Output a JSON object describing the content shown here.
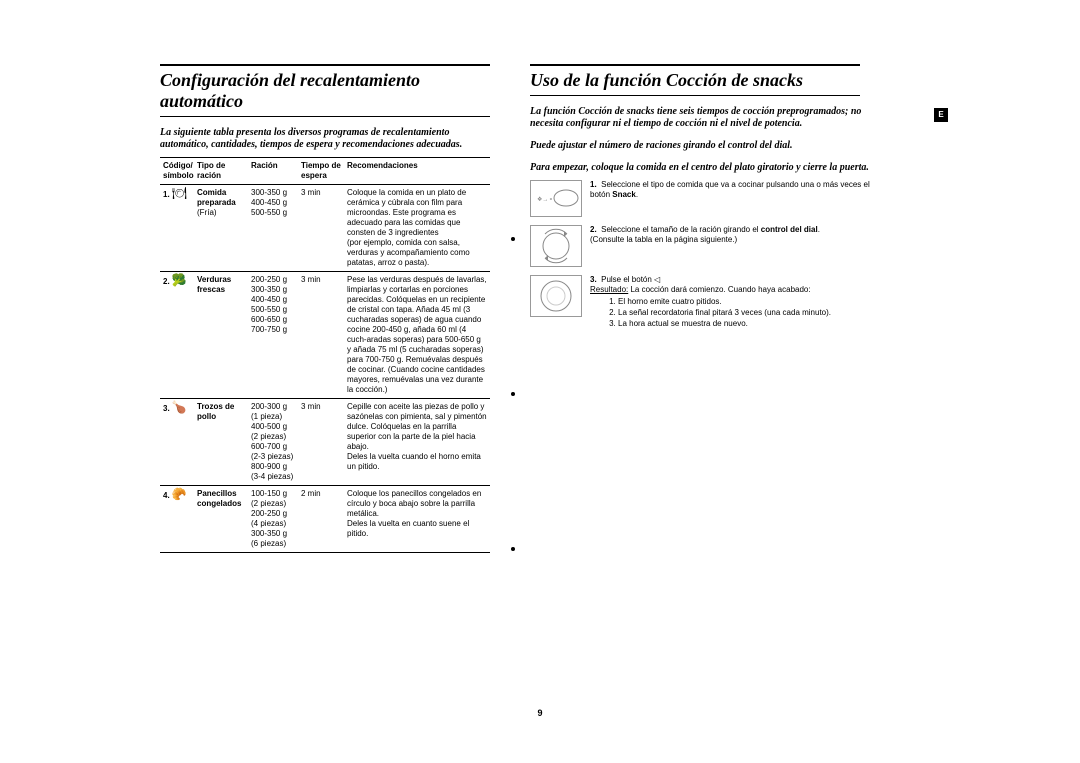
{
  "page_number": "9",
  "side_tab": "E",
  "left": {
    "heading": "Configuración del recalentamiento automático",
    "intro": "La siguiente tabla presenta los diversos programas de recalentamiento automático, cantidades, tiempos de espera y recomendaciones adecuadas.",
    "table": {
      "headers": {
        "code": "Código/\nsímbolo",
        "food": "Tipo de\nración",
        "serving": "Ración",
        "wait": "Tiempo de\nespera",
        "rec": "Recomendaciones"
      },
      "rows": [
        {
          "num": "1.",
          "symbol": "🍽",
          "food_bold": "Comida\npreparada",
          "food_sub": "(Fría)",
          "serving": "300-350 g\n400-450 g\n500-550 g",
          "wait": "3 min",
          "rec": "Coloque la comida en un plato de cerámica y cúbrala con film para microondas. Este programa es adecuado para las comidas que consten de 3 ingredientes\n(por ejemplo, comida con salsa, verduras y acompañamiento como patatas, arroz o pasta)."
        },
        {
          "num": "2.",
          "symbol": "🥦",
          "food_bold": "Verduras\nfrescas",
          "food_sub": "",
          "serving": "200-250 g\n300-350 g\n400-450 g\n500-550 g\n600-650 g\n700-750 g",
          "wait": "3 min",
          "rec": "Pese las verduras después de lavarlas, limpiarlas y cortarlas en porciones parecidas. Colóquelas en un recipiente de cristal con tapa. Añada 45 ml (3 cucharadas soperas) de agua cuando cocine 200-450 g, añada 60 ml (4 cuch-aradas soperas) para 500-650 g y añada 75 ml (5 cucharadas soperas) para 700-750 g. Remuévalas después de cocinar. (Cuando cocine cantidades mayores, remuévalas una vez durante la cocción.)"
        },
        {
          "num": "3.",
          "symbol": "🍗",
          "food_bold": "Trozos de\npollo",
          "food_sub": "",
          "serving": "200-300 g\n(1 pieza)\n400-500 g\n(2 piezas)\n600-700 g\n(2-3 piezas)\n800-900 g\n(3-4 piezas)",
          "wait": "3 min",
          "rec": "Cepille con aceite las piezas de pollo y sazónelas con pimienta, sal y pimentón dulce. Colóquelas en la parrilla superior con la parte de la piel hacia abajo.\nDeles la vuelta cuando el horno emita un pitido."
        },
        {
          "num": "4.",
          "symbol": "🥐",
          "food_bold": "Panecillos\ncongelados",
          "food_sub": "",
          "serving": "100-150 g\n(2 piezas)\n200-250 g\n(4 piezas)\n300-350 g\n(6 piezas)",
          "wait": "2 min",
          "rec": "Coloque los panecillos congelados en círculo y boca abajo sobre la parrilla metálica.\nDeles la vuelta en cuanto suene el pitido."
        }
      ]
    }
  },
  "right": {
    "heading": "Uso de la función Cocción de snacks",
    "intro1": "La función Cocción de snacks tiene seis tiempos de cocción preprogramados; no necesita configurar ni el tiempo de cocción ni el nivel de potencia.",
    "intro2": "Puede ajustar el número de raciones girando el control del dial.",
    "intro3": "Para empezar, coloque la comida en el centro del plato giratorio y cierre la puerta.",
    "steps": [
      {
        "num": "1.",
        "text_pre": "Seleccione el tipo de comida que va a cocinar pulsando una o más veces el botón ",
        "text_bold": "Snack",
        "text_post": "."
      },
      {
        "num": "2.",
        "text_pre": "Seleccione el tamaño de la ración girando el ",
        "text_bold": "control del dial",
        "text_post": ".",
        "text_extra": "(Consulte la tabla en la página siguiente.)"
      },
      {
        "num": "3.",
        "text_pre": "Pulse el botón ",
        "start_icon": "◁",
        "result_label": "Resultado:",
        "result_text": " La cocción dará comienzo. Cuando haya acabado:",
        "subitems": [
          "El horno emite cuatro pitidos.",
          "La señal recordatoria final pitará 3 veces (una cada minuto).",
          "La hora actual se muestra de nuevo."
        ]
      }
    ]
  }
}
